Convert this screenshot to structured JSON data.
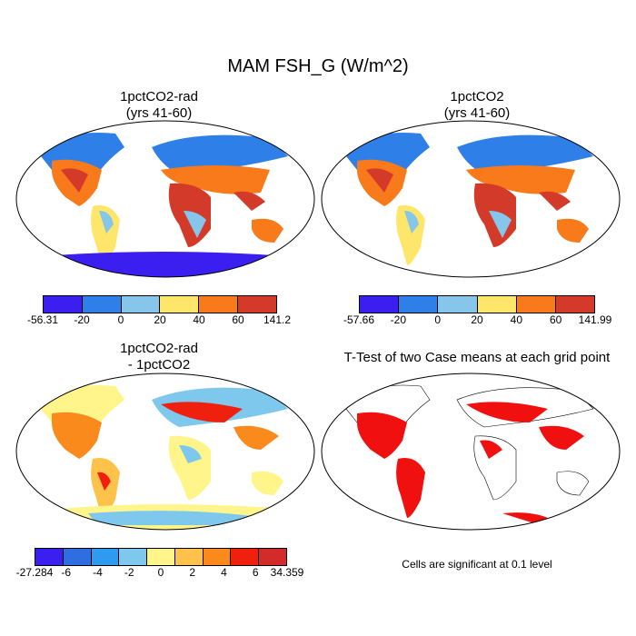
{
  "title": "MAM FSH_G (W/m^2)",
  "panels": [
    {
      "title1": "1pctCO2-rad",
      "title2": "(yrs 41-60)"
    },
    {
      "title1": "1pctCO2",
      "title2": "(yrs 41-60)"
    },
    {
      "title1": "1pctCO2-rad",
      "title2": "- 1pctCO2"
    },
    {
      "title1": "T-Test of two Case means at each grid point",
      "title2": ""
    }
  ],
  "colorbars": [
    {
      "colors": [
        "#3a1ff0",
        "#2f7fe8",
        "#86c6ea",
        "#fde66a",
        "#f87a1a",
        "#d33a2a"
      ],
      "labels": [
        "-56.31",
        "-20",
        "0",
        "20",
        "40",
        "60",
        "141.2"
      ]
    },
    {
      "colors": [
        "#3a1ff0",
        "#2f7fe8",
        "#86c6ea",
        "#fde66a",
        "#f87a1a",
        "#d33a2a"
      ],
      "labels": [
        "-57.66",
        "-20",
        "0",
        "20",
        "40",
        "60",
        "141.99"
      ]
    },
    {
      "colors": [
        "#3a1ff0",
        "#2f6ee0",
        "#2f9bf0",
        "#7ec8ee",
        "#fff58a",
        "#fdc24a",
        "#fb8a1c",
        "#f0200f",
        "#d32a2a"
      ],
      "labels": [
        "-27.284",
        "-6",
        "-4",
        "-2",
        "0",
        "2",
        "4",
        "6",
        "34.359"
      ]
    }
  ],
  "note": "Cells are significant at 0.1 level"
}
